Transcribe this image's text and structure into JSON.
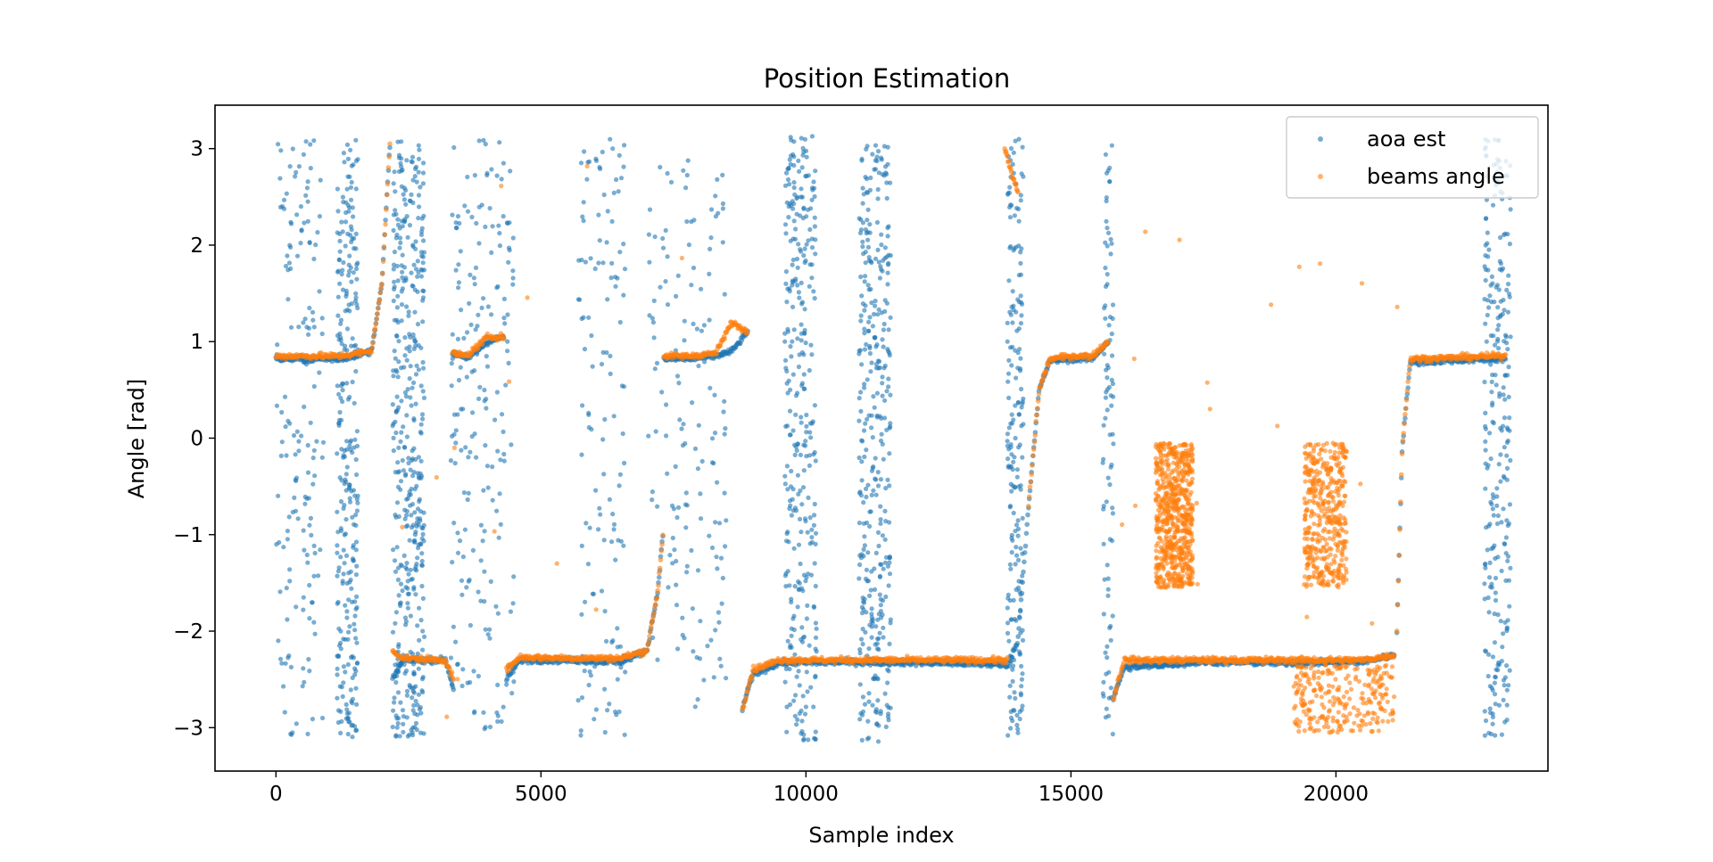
{
  "chart_data": {
    "type": "scatter",
    "title": "Position Estimation",
    "xlabel": "Sample index",
    "ylabel": "Angle [rad]",
    "xlim": [
      -1150,
      24000
    ],
    "ylim": [
      -3.45,
      3.45
    ],
    "xticks": [
      0,
      5000,
      10000,
      15000,
      20000
    ],
    "xtick_labels": [
      "0",
      "5000",
      "10000",
      "15000",
      "20000"
    ],
    "yticks": [
      -3,
      -2,
      -1,
      0,
      1,
      2,
      3
    ],
    "ytick_labels": [
      "−3",
      "−2",
      "−1",
      "0",
      "1",
      "2",
      "3"
    ],
    "grid": false,
    "legend": {
      "position": "upper right"
    },
    "marker_alpha": 0.6,
    "series": [
      {
        "name": "aoa est",
        "color": "#1f77b4",
        "dense_segments": [
          {
            "x": [
              0,
              600,
              1200,
              1800,
              2000,
              2150
            ],
            "y": [
              0.82,
              0.82,
              0.82,
              0.9,
              1.6,
              3.05
            ]
          },
          {
            "x": [
              2200,
              2400,
              3200,
              3350
            ],
            "y": [
              -2.5,
              -2.3,
              -2.3,
              -2.6
            ]
          },
          {
            "x": [
              3330,
              3600,
              4000,
              4300
            ],
            "y": [
              0.88,
              0.82,
              1.0,
              1.05
            ]
          },
          {
            "x": [
              4350,
              4600,
              5500,
              6500,
              7000,
              7200,
              7300
            ],
            "y": [
              -2.5,
              -2.3,
              -2.3,
              -2.32,
              -2.2,
              -1.6,
              -1.0
            ]
          },
          {
            "x": [
              7320,
              7800,
              8300,
              8600,
              8900
            ],
            "y": [
              0.82,
              0.82,
              0.85,
              0.9,
              1.1
            ]
          },
          {
            "x": [
              8800,
              9000,
              9500,
              11000,
              12500,
              13800
            ],
            "y": [
              -2.8,
              -2.45,
              -2.33,
              -2.32,
              -2.33,
              -2.35
            ]
          },
          {
            "x": [
              13850,
              14000,
              14200,
              14400,
              14600,
              15000,
              15400,
              15700
            ],
            "y": [
              -2.3,
              -2.1,
              -0.7,
              0.5,
              0.8,
              0.82,
              0.82,
              1.0
            ]
          },
          {
            "x": [
              15800,
              16000,
              17500,
              19000,
              20500,
              21100
            ],
            "y": [
              -2.7,
              -2.38,
              -2.32,
              -2.33,
              -2.32,
              -2.25
            ]
          },
          {
            "x": [
              21150,
              21250,
              21400,
              22000,
              23000,
              23200
            ],
            "y": [
              -2.0,
              -0.1,
              0.78,
              0.8,
              0.82,
              0.82
            ]
          }
        ],
        "scatter_columns": [
          {
            "x": [
              0,
              900
            ],
            "y": [
              -3.1,
              3.1
            ],
            "n": 160
          },
          {
            "x": [
              1150,
              1550
            ],
            "y": [
              -3.1,
              3.1
            ],
            "n": 280
          },
          {
            "x": [
              2200,
              2800
            ],
            "y": [
              -3.1,
              3.1
            ],
            "n": 420
          },
          {
            "x": [
              3300,
              4500
            ],
            "y": [
              -3.1,
              3.1
            ],
            "n": 200
          },
          {
            "x": [
              5700,
              6600
            ],
            "y": [
              -3.1,
              3.1
            ],
            "n": 130
          },
          {
            "x": [
              7000,
              8500
            ],
            "y": [
              -2.8,
              2.9
            ],
            "n": 150
          },
          {
            "x": [
              9600,
              10200
            ],
            "y": [
              -3.15,
              3.15
            ],
            "n": 320
          },
          {
            "x": [
              11000,
              11600
            ],
            "y": [
              -3.15,
              3.05
            ],
            "n": 360
          },
          {
            "x": [
              13800,
              14100
            ],
            "y": [
              -3.1,
              3.1
            ],
            "n": 200
          },
          {
            "x": [
              15600,
              15800
            ],
            "y": [
              -3.1,
              3.1
            ],
            "n": 90
          },
          {
            "x": [
              22800,
              23300
            ],
            "y": [
              -3.1,
              3.1
            ],
            "n": 260
          }
        ]
      },
      {
        "name": "beams angle",
        "color": "#ff7f0e",
        "dense_segments": [
          {
            "x": [
              0,
              600,
              1200,
              1800,
              2000,
              2150
            ],
            "y": [
              0.85,
              0.85,
              0.85,
              0.9,
              1.6,
              3.05
            ]
          },
          {
            "x": [
              2200,
              2400,
              3200,
              3350
            ],
            "y": [
              -2.2,
              -2.28,
              -2.3,
              -2.5
            ]
          },
          {
            "x": [
              3330,
              3600,
              4000,
              4300
            ],
            "y": [
              0.88,
              0.85,
              1.05,
              1.05
            ]
          },
          {
            "x": [
              4350,
              4600,
              5500,
              6500,
              7000,
              7200,
              7300
            ],
            "y": [
              -2.4,
              -2.27,
              -2.28,
              -2.28,
              -2.2,
              -1.6,
              -1.0
            ]
          },
          {
            "x": [
              7320,
              7800,
              8300,
              8600,
              8900
            ],
            "y": [
              0.85,
              0.85,
              0.88,
              1.2,
              1.1
            ]
          },
          {
            "x": [
              8800,
              9000,
              9500,
              11000,
              12500,
              13800
            ],
            "y": [
              -2.8,
              -2.4,
              -2.3,
              -2.3,
              -2.3,
              -2.3
            ]
          },
          {
            "x": [
              13750,
              13900,
              14000
            ],
            "y": [
              3.0,
              2.7,
              2.55
            ]
          },
          {
            "x": [
              14200,
              14400,
              14600,
              15000,
              15400,
              15700
            ],
            "y": [
              -0.7,
              0.5,
              0.82,
              0.85,
              0.85,
              1.0
            ]
          },
          {
            "x": [
              15800,
              16000,
              17500,
              19000,
              20500,
              21100
            ],
            "y": [
              -2.7,
              -2.3,
              -2.3,
              -2.3,
              -2.3,
              -2.25
            ]
          },
          {
            "x": [
              21150,
              21250,
              21400,
              22000,
              23000,
              23200
            ],
            "y": [
              -2.0,
              -0.1,
              0.82,
              0.83,
              0.85,
              0.85
            ]
          }
        ],
        "scatter_columns": [
          {
            "x": [
              16600,
              17300
            ],
            "y": [
              -1.55,
              -0.05
            ],
            "n": 650
          },
          {
            "x": [
              19400,
              20200
            ],
            "y": [
              -1.55,
              -0.05
            ],
            "n": 420
          },
          {
            "x": [
              19200,
              21100
            ],
            "y": [
              -3.05,
              -2.35
            ],
            "n": 260
          },
          {
            "x": [
              15800,
              22000
            ],
            "y": [
              -3.1,
              2.3
            ],
            "n": 20
          },
          {
            "x": [
              0,
              8000
            ],
            "y": [
              -3.0,
              3.0
            ],
            "n": 14
          }
        ]
      }
    ]
  }
}
